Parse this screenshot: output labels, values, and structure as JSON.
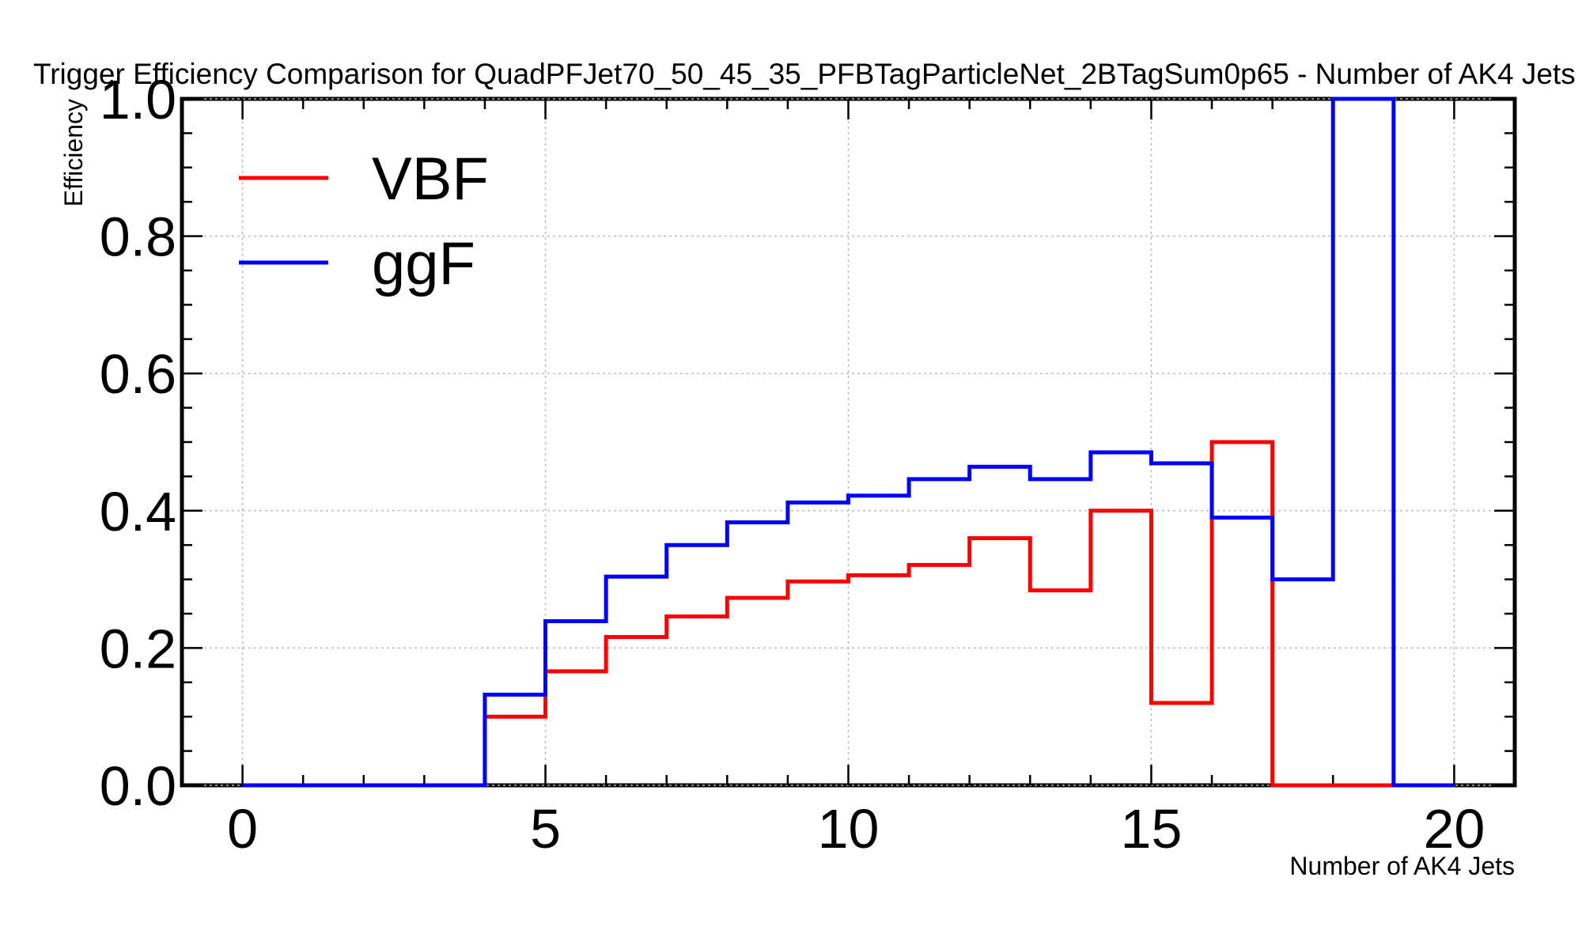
{
  "chart_data": {
    "type": "line",
    "title": "Trigger Efficiency Comparison for QuadPFJet70_50_45_35_PFBTagParticleNet_2BTagSum0p65 - Number of AK4 Jets",
    "xlabel": "Number of AK4 Jets",
    "ylabel": "Efficiency",
    "xlim": [
      -1,
      21
    ],
    "ylim": [
      0.0,
      1.0
    ],
    "x_ticks": [
      0,
      5,
      10,
      15,
      20
    ],
    "y_ticks": [
      0.0,
      0.2,
      0.4,
      0.6,
      0.8,
      1.0
    ],
    "x_tick_labels": [
      "0",
      "5",
      "10",
      "15",
      "20"
    ],
    "y_tick_labels": [
      "0.0",
      "0.2",
      "0.4",
      "0.6",
      "0.8",
      "1.0"
    ],
    "grid": true,
    "legend_position": "top-left",
    "bin_edges": [
      0,
      1,
      2,
      3,
      4,
      5,
      6,
      7,
      8,
      9,
      10,
      11,
      12,
      13,
      14,
      15,
      16,
      17,
      18,
      19,
      20
    ],
    "series": [
      {
        "name": "VBF",
        "color": "#ff0000",
        "values": [
          0,
          0,
          0,
          0,
          0.1,
          0.166,
          0.216,
          0.246,
          0.273,
          0.297,
          0.306,
          0.321,
          0.36,
          0.284,
          0.4,
          0.12,
          0.5,
          0,
          0,
          0
        ]
      },
      {
        "name": "ggF",
        "color": "#0000ff",
        "values": [
          0,
          0,
          0,
          0,
          0.132,
          0.239,
          0.304,
          0.35,
          0.383,
          0.412,
          0.422,
          0.446,
          0.464,
          0.446,
          0.485,
          0.469,
          0.39,
          0.3,
          1.0,
          0
        ]
      }
    ]
  }
}
